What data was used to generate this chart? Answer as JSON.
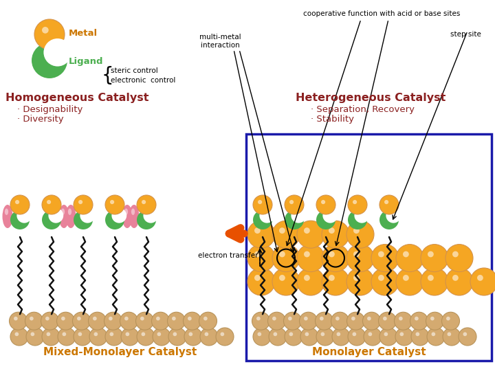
{
  "bg_color": "#ffffff",
  "metal_color": "#F5A623",
  "metal_edge": "#D4924A",
  "ligand_color": "#4CAF50",
  "pink_color": "#E8829A",
  "surf_color": "#D4AA70",
  "surf_edge": "#B8935A",
  "red_color": "#8B2020",
  "orange_color": "#CC7700",
  "black_color": "#000000",
  "blue_box": "#1A1AAA",
  "arrow_orange": "#E85000",
  "stem_color": "#111111",
  "homogeneous_title": "Homogeneous Catalyst",
  "bullet1_homo": "· Designability",
  "bullet2_homo": "· Diversity",
  "heterogeneous_title": "Heterogeneous Catalyst",
  "bullet1_hetero": "· Separation, Recovery",
  "bullet2_hetero": "· Stability",
  "mixed_title": "Mixed-Monolayer Catalyst",
  "mono_title": "Monolayer Catalyst",
  "metal_label": "Metal",
  "ligand_label": "Ligand",
  "steric_label": "steric control",
  "electronic_label": "electronic  control",
  "coop_label": "cooperative function with acid or base sites",
  "multi_label": "multi-metal\ninteraction",
  "step_label": "step site",
  "electron_label": "electron transfer"
}
